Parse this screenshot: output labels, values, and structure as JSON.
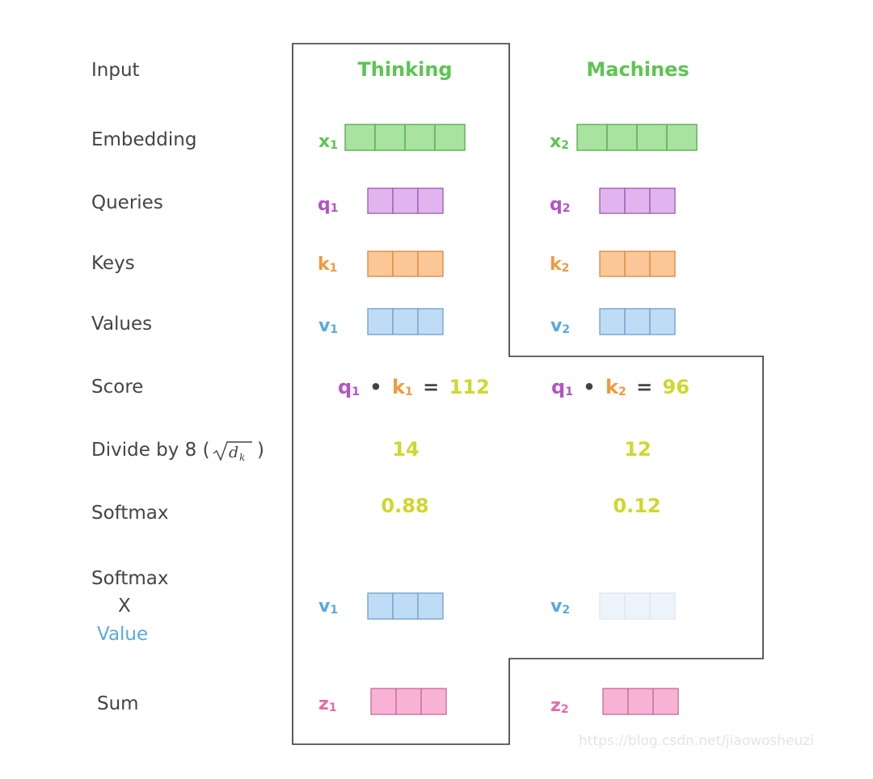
{
  "colors": {
    "green": "#5cc552",
    "green_fill": "#a8e3a0",
    "green_stroke": "#55a74c",
    "purple": "#b552c8",
    "purple_fill": "#e2b4ef",
    "purple_stroke": "#9c57b0",
    "orange": "#f09a3c",
    "orange_fill": "#fcc796",
    "orange_stroke": "#d8893f",
    "blue": "#5aa9dd",
    "blue_fill": "#bfdcf6",
    "blue_stroke": "#6e9ec8",
    "blue_faint_fill": "#eef4fb",
    "blue_faint_stroke": "#dbe6f2",
    "pink": "#e66aa7",
    "pink_fill": "#f8b2d5",
    "pink_stroke": "#c76a98",
    "yellow": "#cfd72c",
    "label": "#444444",
    "outline": "#333333"
  },
  "row_labels": {
    "input": "Input",
    "embedding": "Embedding",
    "queries": "Queries",
    "keys": "Keys",
    "values": "Values",
    "score": "Score",
    "divide_prefix": "Divide by 8 (",
    "divide_sqrt": "d",
    "divide_sub": "k",
    "divide_suffix": ")",
    "softmax": "Softmax",
    "softmax_x_value_1": "Softmax",
    "softmax_x_value_2": "X",
    "softmax_x_value_3": "Value",
    "sum": "Sum"
  },
  "words": [
    "Thinking",
    "Machines"
  ],
  "tokens": [
    {
      "x_label": "x",
      "x_sub": "1",
      "q_label": "q",
      "q_sub": "1",
      "k_label": "k",
      "k_sub": "1",
      "v_label": "v",
      "v_sub": "1",
      "score_q": "q",
      "score_q_sub": "1",
      "score_dot": "•",
      "score_k": "k",
      "score_k_sub": "1",
      "score_eq": "=",
      "score_val": "112",
      "divided": "14",
      "softmax": "0.88",
      "wv_label": "v",
      "wv_sub": "1",
      "z_label": "z",
      "z_sub": "1"
    },
    {
      "x_label": "x",
      "x_sub": "2",
      "q_label": "q",
      "q_sub": "2",
      "k_label": "k",
      "k_sub": "2",
      "v_label": "v",
      "v_sub": "2",
      "score_q": "q",
      "score_q_sub": "1",
      "score_dot": "•",
      "score_k": "k",
      "score_k_sub": "2",
      "score_eq": "=",
      "score_val": "96",
      "divided": "12",
      "softmax": "0.12",
      "wv_label": "v",
      "wv_sub": "2",
      "z_label": "z",
      "z_sub": "2"
    }
  ],
  "watermark": "https://blog.csdn.net/jiaowosheuzi"
}
